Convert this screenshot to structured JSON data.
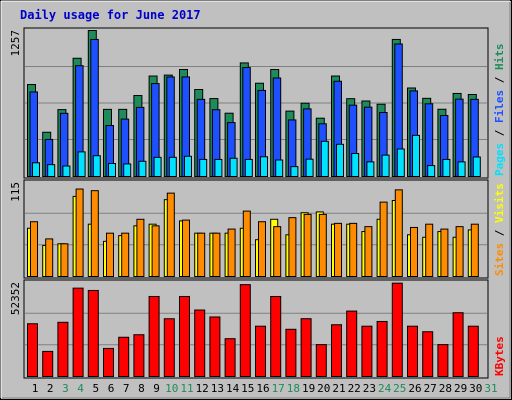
{
  "chart_data": {
    "type": "bar",
    "title": "Daily usage for June 2017",
    "x": [
      "1",
      "2",
      "3",
      "4",
      "5",
      "6",
      "7",
      "8",
      "9",
      "10",
      "11",
      "12",
      "13",
      "14",
      "15",
      "16",
      "17",
      "18",
      "19",
      "20",
      "21",
      "22",
      "23",
      "24",
      "25",
      "26",
      "27",
      "28",
      "29",
      "30",
      "31"
    ],
    "weekend_days": [
      "3",
      "4",
      "10",
      "11",
      "17",
      "18",
      "24",
      "25",
      "31"
    ],
    "panels": [
      {
        "id": "traffic",
        "ylabel_max": "1257",
        "ymax": 1257,
        "right_labels": [
          "Pages",
          "Files",
          "Hits"
        ],
        "right_label_colors": [
          "#00e0ff",
          "#1e50ff",
          "#1e8c5a"
        ],
        "series": [
          {
            "name": "Hits",
            "color": "#1e8c5a",
            "values": [
              792,
              381,
              576,
              1018,
              1257,
              578,
              578,
              697,
              865,
              873,
              921,
              749,
              671,
              545,
              978,
              803,
              921,
              563,
              631,
              502,
              865,
              670,
              650,
              622,
              1180,
              762,
              673,
              579,
              715,
              706,
              0
            ]
          },
          {
            "name": "Files",
            "color": "#1e50ff",
            "values": [
              728,
              319,
              544,
              954,
              1180,
              439,
              494,
              595,
              800,
              857,
              857,
              664,
              575,
              464,
              938,
              741,
              848,
              487,
              582,
              454,
              820,
              614,
              597,
              551,
              1141,
              737,
              626,
              525,
              666,
              664,
              0
            ]
          },
          {
            "name": "Pages",
            "color": "#00e0ff",
            "values": [
              118,
              102,
              90,
              212,
              179,
              112,
              108,
              131,
              165,
              165,
              174,
              147,
              147,
              157,
              147,
              170,
              142,
              85,
              149,
              303,
              277,
              198,
              126,
              184,
              237,
              354,
              94,
              147,
              126,
              168,
              0
            ]
          }
        ]
      },
      {
        "id": "visitors",
        "ylabel_max": "115",
        "ymax": 115,
        "right_labels": [
          "Sites",
          "Visits"
        ],
        "right_label_colors": [
          "#ff8c00",
          "#ffff00"
        ],
        "series": [
          {
            "name": "Visits",
            "color": "#ffff00",
            "values": [
              59,
              38,
              40,
              98,
              64,
              43,
              50,
              62,
              64,
              94,
              68,
              53,
              53,
              53,
              59,
              45,
              70,
              51,
              78,
              79,
              64,
              64,
              55,
              70,
              93,
              51,
              48,
              55,
              48,
              57,
              0
            ]
          },
          {
            "name": "Sites",
            "color": "#ff8c00",
            "values": [
              67,
              46,
              40,
              107,
              105,
              53,
              53,
              70,
              62,
              102,
              69,
              53,
              53,
              58,
              80,
              67,
              61,
              72,
              76,
              76,
              65,
              65,
              61,
              91,
              106,
              60,
              64,
              58,
              61,
              64,
              0
            ]
          }
        ]
      },
      {
        "id": "bandwidth",
        "ylabel_max": "52352",
        "ymax": 52352,
        "right_labels": [
          "KBytes"
        ],
        "right_label_colors": [
          "#ff0000"
        ],
        "series": [
          {
            "name": "KBytes",
            "color": "#ff0000",
            "values": [
              29376,
              13968,
              30180,
              49212,
              47916,
              15636,
              21852,
              23268,
              44568,
              32172,
              44568,
              37020,
              33156,
              21060,
              51156,
              28008,
              44568,
              26292,
              32196,
              17772,
              28824,
              36432,
              28008,
              30648,
              51984,
              28008,
              24936,
              17772,
              35532,
              28008,
              0
            ]
          }
        ]
      }
    ]
  }
}
